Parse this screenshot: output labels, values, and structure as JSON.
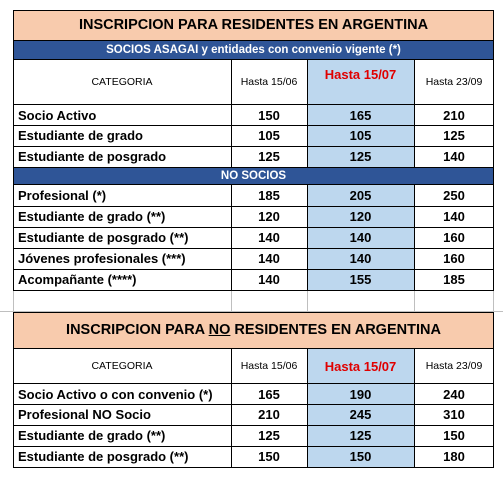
{
  "table1": {
    "title": "INSCRIPCION PARA RESIDENTES EN ARGENTINA",
    "section_socios": "SOCIOS ASAGAI y entidades con convenio vigente (*)",
    "header": {
      "categoria": "CATEGORIA",
      "col1": "Hasta 15/06",
      "col2": "Hasta 15/07",
      "col3": "Hasta 23/09"
    },
    "socios_rows": [
      {
        "label": "Socio Activo",
        "v1": "150",
        "v2": "165",
        "v3": "210"
      },
      {
        "label": "Estudiante de grado",
        "v1": "105",
        "v2": "105",
        "v3": "125"
      },
      {
        "label": "Estudiante de posgrado",
        "v1": "125",
        "v2": "125",
        "v3": "140"
      }
    ],
    "section_no_socios": "NO SOCIOS",
    "no_socios_rows": [
      {
        "label": "Profesional (*)",
        "v1": "185",
        "v2": "205",
        "v3": "250"
      },
      {
        "label": "Estudiante de grado (**)",
        "v1": "120",
        "v2": "120",
        "v3": "140"
      },
      {
        "label": "Estudiante de posgrado (**)",
        "v1": "140",
        "v2": "140",
        "v3": "160"
      },
      {
        "label": "Jóvenes profesionales (***)",
        "v1": "140",
        "v2": "140",
        "v3": "160"
      },
      {
        "label": "Acompañante (****)",
        "v1": "140",
        "v2": "155",
        "v3": "185"
      }
    ]
  },
  "table2": {
    "title_pre": "INSCRIPCION PARA ",
    "title_underlined": "NO",
    "title_post": " RESIDENTES EN ARGENTINA",
    "header": {
      "categoria": "CATEGORIA",
      "col1": "Hasta 15/06",
      "col2": "Hasta 15/07",
      "col3": "Hasta 23/09"
    },
    "rows": [
      {
        "label": "Socio Activo o con convenio (*)",
        "v1": "165",
        "v2": "190",
        "v3": "240"
      },
      {
        "label": "Profesional NO Socio",
        "v1": "210",
        "v2": "245",
        "v3": "310"
      },
      {
        "label": "Estudiante de grado (**)",
        "v1": "125",
        "v2": "125",
        "v3": "150"
      },
      {
        "label": "Estudiante de posgrado (**)",
        "v1": "150",
        "v2": "150",
        "v3": "180"
      }
    ]
  },
  "colors": {
    "title_bg": "#f8cbad",
    "band_bg": "#2f5597",
    "highlight_bg": "#bdd7ee",
    "highlight_text": "#e00000"
  }
}
